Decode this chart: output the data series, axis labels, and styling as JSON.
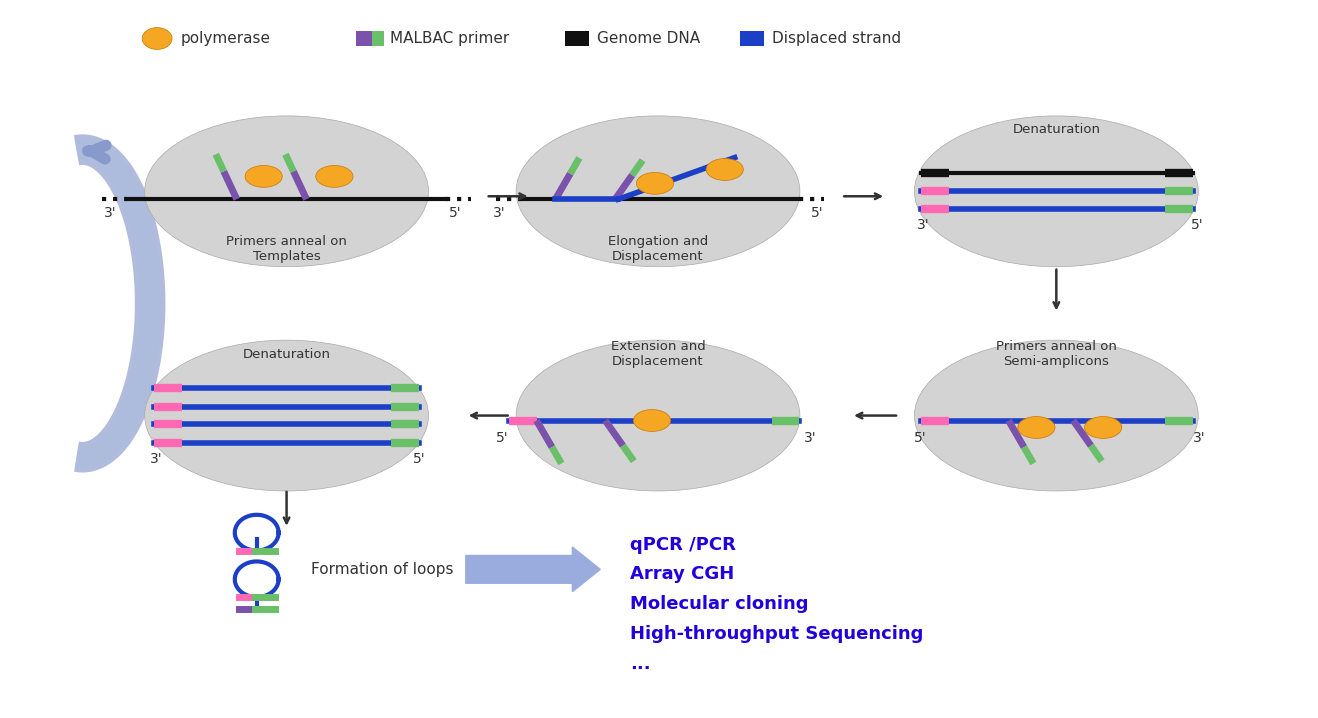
{
  "bg_color": "#ffffff",
  "ellipse_color": "#D3D3D3",
  "arrow_color": "#8899CC",
  "blue_text_color": "#2200DD",
  "text_color": "#333333",
  "orange": "#F5A623",
  "purple": "#7B52AB",
  "green": "#6ABF69",
  "dark": "#111111",
  "blue": "#1C3FC8",
  "pink": "#FF69B4",
  "applications": [
    "qPCR /PCR",
    "Array CGH",
    "Molecular cloning",
    "High-throughput Sequencing",
    "..."
  ]
}
